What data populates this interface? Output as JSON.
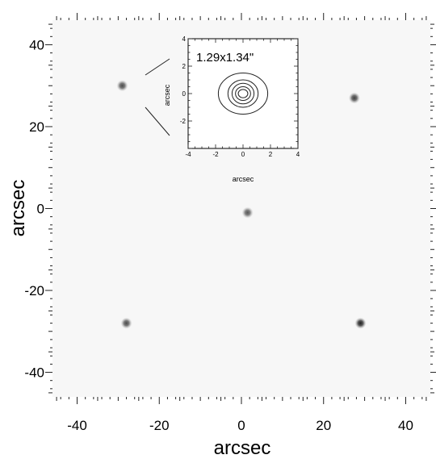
{
  "chart_data": [
    {
      "type": "scatter",
      "description_role": "main image",
      "xlabel": "arcsec",
      "ylabel": "arcsec",
      "xlim": [
        -46,
        46
      ],
      "ylim": [
        -46,
        46
      ],
      "xticks": [
        -40,
        -20,
        0,
        20,
        40
      ],
      "yticks": [
        40,
        20,
        0,
        -20,
        -40
      ],
      "xtick_labels": [
        "-40",
        "-20",
        "0",
        "20",
        "40"
      ],
      "ytick_labels": [
        "40",
        "20",
        "0",
        "-20",
        "-40"
      ],
      "grid": false,
      "points": [
        {
          "x": -29,
          "y": 30,
          "intensity": 0.75
        },
        {
          "x": 27.5,
          "y": 27,
          "intensity": 0.8
        },
        {
          "x": 1.5,
          "y": -1,
          "intensity": 0.7
        },
        {
          "x": -28,
          "y": -28,
          "intensity": 0.75
        },
        {
          "x": 29,
          "y": -28,
          "intensity": 0.95
        }
      ]
    },
    {
      "type": "contour",
      "description_role": "inset PSF",
      "annotation": "1.29x1.34\"",
      "xlabel": "arcsec",
      "ylabel": "arcsec",
      "xlim": [
        -4,
        4
      ],
      "ylim": [
        -4,
        4
      ],
      "xticks": [
        -4,
        -2,
        0,
        2,
        4
      ],
      "yticks": [
        4,
        2,
        0,
        -2
      ],
      "xtick_labels": [
        "-4",
        "-2",
        "0",
        "2",
        "4"
      ],
      "ytick_labels": [
        "4",
        "2",
        "0",
        "-2"
      ],
      "center": {
        "x": 0,
        "y": 0
      },
      "contours": [
        {
          "rx": 1.8,
          "ry": 1.5
        },
        {
          "rx": 1.1,
          "ry": 1.0
        },
        {
          "rx": 0.8,
          "ry": 0.75
        },
        {
          "rx": 0.55,
          "ry": 0.5
        },
        {
          "rx": 0.35,
          "ry": 0.3
        }
      ]
    }
  ],
  "colors": {
    "background": "#f7f7f7",
    "frame": "#000000",
    "source": "#111111"
  }
}
